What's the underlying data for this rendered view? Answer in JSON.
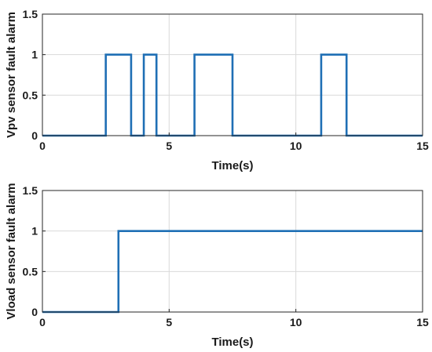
{
  "chart_data": [
    {
      "type": "line",
      "xlabel": "Time(s)",
      "ylabel": "Vpv sensor fault alarm",
      "xlim": [
        0,
        15
      ],
      "ylim": [
        0,
        1.5
      ],
      "xticks": [
        "0",
        "5",
        "10",
        "15"
      ],
      "yticks": [
        "0",
        "0.5",
        "1",
        "1.5"
      ],
      "grid": true,
      "color": "#1f6fb5",
      "x": [
        0,
        2.5,
        2.5,
        3.5,
        3.5,
        4.0,
        4.0,
        4.5,
        4.5,
        6.0,
        6.0,
        7.5,
        7.5,
        11.0,
        11.0,
        12.0,
        12.0,
        15
      ],
      "y": [
        0,
        0,
        1,
        1,
        0,
        0,
        1,
        1,
        0,
        0,
        1,
        1,
        0,
        0,
        1,
        1,
        0,
        0
      ]
    },
    {
      "type": "line",
      "xlabel": "Time(s)",
      "ylabel": "Vload sensor fault alarm",
      "xlim": [
        0,
        15
      ],
      "ylim": [
        0,
        1.5
      ],
      "xticks": [
        "0",
        "5",
        "10",
        "15"
      ],
      "yticks": [
        "0",
        "0.5",
        "1",
        "1.5"
      ],
      "grid": true,
      "color": "#1f6fb5",
      "x": [
        0,
        3.0,
        3.0,
        15
      ],
      "y": [
        0,
        0,
        1,
        1
      ]
    }
  ]
}
